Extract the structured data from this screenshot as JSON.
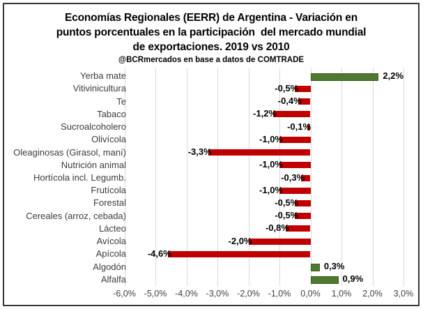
{
  "chart_data": {
    "type": "bar",
    "orientation": "horizontal",
    "title_lines": [
      "Economías Regionales (EERR) de Argentina - Variación en",
      "puntos porcentuales en la participación  del mercado mundial",
      "de exportaciones. 2019 vs 2010"
    ],
    "subtitle": "@BCRmercados en base a datos de COMTRADE",
    "categories": [
      "Yerba mate",
      "Vitivinicultura",
      "Te",
      "Tabaco",
      "Sucroalcoholero",
      "Olivícola",
      "Oleaginosas (Girasol, maní)",
      "Nutrición animal",
      "Hortícola incl. Legumb.",
      "Frutícola",
      "Forestal",
      "Cereales (arroz, cebada)",
      "Lácteo",
      "Avícola",
      "Apícola",
      "Algodón",
      "Alfalfa"
    ],
    "values": [
      2.2,
      -0.5,
      -0.4,
      -1.2,
      -0.1,
      -1.0,
      -3.3,
      -1.0,
      -0.3,
      -1.0,
      -0.5,
      -0.5,
      -0.8,
      -2.0,
      -4.6,
      0.3,
      0.9
    ],
    "value_labels": [
      "2,2%",
      "-0,5%",
      "-0,4%",
      "-1,2%",
      "-0,1%",
      "-1,0%",
      "-3,3%",
      "-1,0%",
      "-0,3%",
      "-1,0%",
      "-0,5%",
      "-0,5%",
      "-0,8%",
      "-2,0%",
      "-4,6%",
      "0,3%",
      "0,9%"
    ],
    "x_tick_values": [
      -6,
      -5,
      -4,
      -3,
      -2,
      -1,
      0,
      1,
      2,
      3
    ],
    "x_tick_labels": [
      "-6,0%",
      "-5,0%",
      "-4,0%",
      "-3,0%",
      "-2,0%",
      "-1,0%",
      "0,0%",
      "1,0%",
      "2,0%",
      "3,0%"
    ],
    "xlim": [
      -6,
      3
    ],
    "grid": true,
    "legend": "none",
    "xlabel": "",
    "ylabel": "",
    "colors": {
      "negative_bar": "#c00000",
      "positive_bar": "#4d7a2e",
      "gridline": "#d9d9d9",
      "axis_text": "#404040",
      "value_text": "#000000",
      "frame_border": "#373737"
    }
  }
}
